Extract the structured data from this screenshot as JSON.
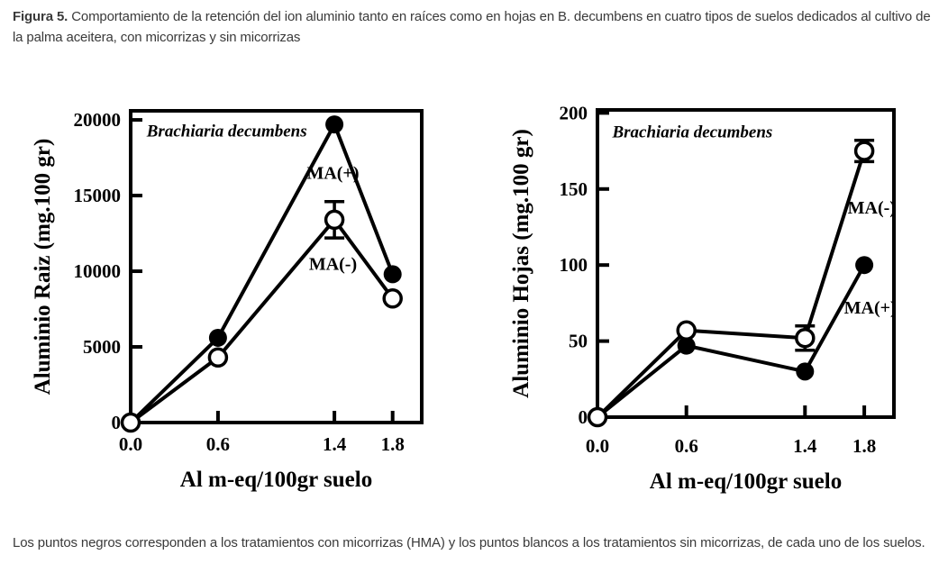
{
  "page": {
    "background": "#ffffff",
    "ink": "#000000",
    "caption_color": "#3a3a3a"
  },
  "caption": {
    "label": "Figura 5.",
    "text": "Comportamiento de la retención del ion aluminio tanto en raíces como en hojas en B. decumbens en cuatro tipos de suelos dedicados al cultivo de la palma aceitera, con micorrizas y sin micorrizas"
  },
  "footnote": {
    "text": "Los puntos negros corresponden a los tratamientos con micorrizas (HMA)  y los puntos blancos a los tratamientos sin micorrizas, de cada uno de los suelos."
  },
  "chart_data": [
    {
      "type": "line",
      "title": "Brachiaria decumbens",
      "xlabel": "Al m-eq/100gr suelo",
      "ylabel": "Aluminio Raiz  (mg.100 gr)",
      "x": [
        0.0,
        0.6,
        1.4,
        1.8
      ],
      "xlim": [
        0,
        2.0
      ],
      "ylim": [
        0,
        20600
      ],
      "grid": false,
      "xticks": [
        0.0,
        0.6,
        1.4,
        1.8
      ],
      "xtick_labels": [
        "0.0",
        "0.6",
        "1.4",
        "1.8"
      ],
      "yticks": [
        0,
        5000,
        10000,
        15000,
        20000
      ],
      "ytick_labels": [
        "0",
        "5000",
        "10000",
        "15000",
        "20000"
      ],
      "series": [
        {
          "name": "MA(+)",
          "marker": "filled-circle",
          "values": [
            0,
            5600,
            19700,
            9800
          ],
          "errors": [
            0,
            0,
            0,
            0
          ]
        },
        {
          "name": "MA(-)",
          "marker": "open-circle",
          "values": [
            0,
            4300,
            13400,
            8200
          ],
          "errors": [
            0,
            0,
            1200,
            0
          ]
        }
      ],
      "annotations": [
        {
          "text": "Brachiaria decumbens",
          "x": 0.11,
          "y": 18900,
          "style": "title"
        },
        {
          "text": "MA(+)",
          "x": 1.39,
          "y": 16100,
          "style": "label"
        },
        {
          "text": "MA(-)",
          "x": 1.39,
          "y": 10100,
          "style": "label"
        }
      ]
    },
    {
      "type": "line",
      "title": "Brachiaria decumbens",
      "xlabel": "Al m-eq/100gr suelo",
      "ylabel": "Aluminio Hojas  (mg.100 gr)",
      "x": [
        0.0,
        0.6,
        1.4,
        1.8
      ],
      "xlim": [
        0,
        2.0
      ],
      "ylim": [
        0,
        202
      ],
      "grid": false,
      "xticks": [
        0.0,
        0.6,
        1.4,
        1.8
      ],
      "xtick_labels": [
        "0.0",
        "0.6",
        "1.4",
        "1.8"
      ],
      "yticks": [
        0,
        50,
        100,
        150,
        200
      ],
      "ytick_labels": [
        "0",
        "50",
        "100",
        "150",
        "200"
      ],
      "series": [
        {
          "name": "MA(+)",
          "marker": "filled-circle",
          "values": [
            0,
            47,
            30,
            100
          ],
          "errors": [
            0,
            0,
            0,
            0
          ]
        },
        {
          "name": "MA(-)",
          "marker": "open-circle",
          "values": [
            0,
            57,
            52,
            175
          ],
          "errors": [
            0,
            0,
            8,
            7
          ]
        }
      ],
      "annotations": [
        {
          "text": "Brachiaria decumbens",
          "x": 0.1,
          "y": 184,
          "style": "title"
        },
        {
          "text": "MA(-)",
          "x": 1.85,
          "y": 134,
          "style": "label"
        },
        {
          "text": "MA(+)",
          "x": 1.84,
          "y": 68,
          "style": "label"
        }
      ]
    }
  ]
}
